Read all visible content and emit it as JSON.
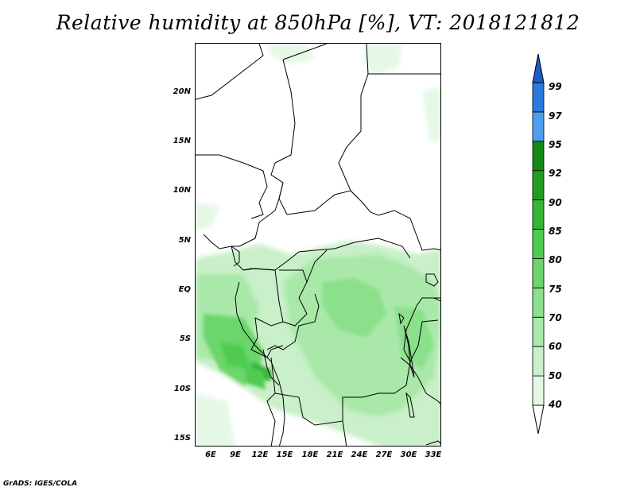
{
  "title": "Relative humidity at 850hPa [%], VT: 2018121812",
  "footer": "GrADS: IGES/COLA",
  "map": {
    "lat_labels": [
      "20N",
      "15N",
      "10N",
      "5N",
      "EQ",
      "5S",
      "10S",
      "15S"
    ],
    "lon_labels": [
      "6E",
      "9E",
      "12E",
      "15E",
      "18E",
      "21E",
      "24E",
      "27E",
      "30E",
      "33E"
    ]
  },
  "colorbar": {
    "levels": [
      "40",
      "50",
      "60",
      "70",
      "75",
      "80",
      "85",
      "90",
      "92",
      "95",
      "97",
      "99"
    ],
    "colors": [
      "#ffffff",
      "#e5f8e5",
      "#c9f0c9",
      "#a9e8a9",
      "#8be08b",
      "#6cd66c",
      "#4fcc4f",
      "#35b535",
      "#229d22",
      "#138813",
      "#4d9ff0",
      "#2a7ae0",
      "#1a5cc8"
    ]
  }
}
